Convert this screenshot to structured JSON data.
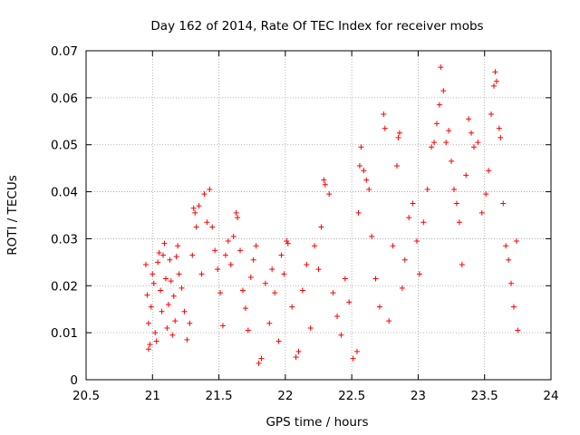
{
  "chart_data": {
    "type": "scatter",
    "title": "Day 162 of 2014, Rate Of TEC Index for receiver mobs",
    "xlabel": "GPS time / hours",
    "ylabel": "ROTI / TECUs",
    "xlim": [
      20.5,
      24
    ],
    "ylim": [
      0,
      0.07
    ],
    "xticks": [
      20.5,
      21,
      21.5,
      22,
      22.5,
      23,
      23.5,
      24
    ],
    "xtick_labels": [
      "20.5",
      "21",
      "21.5",
      "22",
      "22.5",
      "23",
      "23.5",
      "24"
    ],
    "yticks": [
      0,
      0.01,
      0.02,
      0.03,
      0.04,
      0.05,
      0.06,
      0.07
    ],
    "ytick_labels": [
      "0",
      "0.01",
      "0.02",
      "0.03",
      "0.04",
      "0.05",
      "0.06",
      "0.07"
    ],
    "grid": true,
    "marker": "+",
    "color": "#ff0000",
    "series": [
      {
        "name": "ROTI",
        "points": [
          [
            20.95,
            0.0245
          ],
          [
            20.96,
            0.018
          ],
          [
            20.97,
            0.012
          ],
          [
            20.97,
            0.0065
          ],
          [
            20.98,
            0.0075
          ],
          [
            20.99,
            0.0155
          ],
          [
            21.0,
            0.0225
          ],
          [
            21.01,
            0.0205
          ],
          [
            21.02,
            0.01
          ],
          [
            21.03,
            0.0082
          ],
          [
            21.04,
            0.025
          ],
          [
            21.05,
            0.027
          ],
          [
            21.06,
            0.019
          ],
          [
            21.07,
            0.0145
          ],
          [
            21.08,
            0.0265
          ],
          [
            21.09,
            0.029
          ],
          [
            21.1,
            0.0215
          ],
          [
            21.11,
            0.011
          ],
          [
            21.12,
            0.016
          ],
          [
            21.13,
            0.0255
          ],
          [
            21.14,
            0.021
          ],
          [
            21.15,
            0.0095
          ],
          [
            21.16,
            0.0178
          ],
          [
            21.17,
            0.0125
          ],
          [
            21.18,
            0.0262
          ],
          [
            21.19,
            0.0285
          ],
          [
            21.2,
            0.0225
          ],
          [
            21.22,
            0.0195
          ],
          [
            21.24,
            0.0145
          ],
          [
            21.26,
            0.0085
          ],
          [
            21.28,
            0.012
          ],
          [
            21.3,
            0.0265
          ],
          [
            21.31,
            0.0365
          ],
          [
            21.32,
            0.0355
          ],
          [
            21.33,
            0.0325
          ],
          [
            21.35,
            0.037
          ],
          [
            21.37,
            0.0225
          ],
          [
            21.39,
            0.0395
          ],
          [
            21.41,
            0.0335
          ],
          [
            21.43,
            0.0405
          ],
          [
            21.45,
            0.0325
          ],
          [
            21.47,
            0.0275
          ],
          [
            21.49,
            0.0235
          ],
          [
            21.51,
            0.0185
          ],
          [
            21.53,
            0.0115
          ],
          [
            21.55,
            0.0265
          ],
          [
            21.57,
            0.0295
          ],
          [
            21.59,
            0.0245
          ],
          [
            21.61,
            0.0305
          ],
          [
            21.63,
            0.0355
          ],
          [
            21.64,
            0.0345
          ],
          [
            21.66,
            0.0275
          ],
          [
            21.68,
            0.019
          ],
          [
            21.7,
            0.0152
          ],
          [
            21.72,
            0.0105
          ],
          [
            21.74,
            0.0218
          ],
          [
            21.76,
            0.0255
          ],
          [
            21.78,
            0.0285
          ],
          [
            21.8,
            0.0035
          ],
          [
            21.82,
            0.0045
          ],
          [
            21.85,
            0.0205
          ],
          [
            21.88,
            0.012
          ],
          [
            21.9,
            0.0235
          ],
          [
            21.92,
            0.0185
          ],
          [
            21.95,
            0.0082
          ],
          [
            21.97,
            0.0265
          ],
          [
            21.99,
            0.0225
          ],
          [
            22.01,
            0.0295
          ],
          [
            22.02,
            0.029
          ],
          [
            22.05,
            0.0155
          ],
          [
            22.08,
            0.0048
          ],
          [
            22.1,
            0.006
          ],
          [
            22.13,
            0.019
          ],
          [
            22.16,
            0.0245
          ],
          [
            22.19,
            0.011
          ],
          [
            22.22,
            0.0285
          ],
          [
            22.25,
            0.0235
          ],
          [
            22.27,
            0.0325
          ],
          [
            22.29,
            0.0425
          ],
          [
            22.3,
            0.0415
          ],
          [
            22.33,
            0.0395
          ],
          [
            22.36,
            0.0185
          ],
          [
            22.39,
            0.0135
          ],
          [
            22.42,
            0.0095
          ],
          [
            22.45,
            0.0215
          ],
          [
            22.48,
            0.0165
          ],
          [
            22.51,
            0.0045
          ],
          [
            22.54,
            0.006
          ],
          [
            22.55,
            0.0355
          ],
          [
            22.56,
            0.0455
          ],
          [
            22.57,
            0.0495
          ],
          [
            22.59,
            0.0445
          ],
          [
            22.61,
            0.0425
          ],
          [
            22.63,
            0.0405
          ],
          [
            22.65,
            0.0305
          ],
          [
            22.68,
            0.0215
          ],
          [
            22.71,
            0.0155
          ],
          [
            22.74,
            0.0565
          ],
          [
            22.75,
            0.0535
          ],
          [
            22.78,
            0.0125
          ],
          [
            22.81,
            0.0285
          ],
          [
            22.84,
            0.0455
          ],
          [
            22.85,
            0.0515
          ],
          [
            22.86,
            0.0525
          ],
          [
            22.88,
            0.0195
          ],
          [
            22.9,
            0.0255
          ],
          [
            22.93,
            0.0345
          ],
          [
            22.96,
            0.0375
          ],
          [
            22.99,
            0.0295
          ],
          [
            23.01,
            0.0225
          ],
          [
            23.04,
            0.0335
          ],
          [
            23.07,
            0.0405
          ],
          [
            23.1,
            0.0495
          ],
          [
            23.12,
            0.0505
          ],
          [
            23.14,
            0.0545
          ],
          [
            23.16,
            0.0585
          ],
          [
            23.17,
            0.0665
          ],
          [
            23.19,
            0.0615
          ],
          [
            23.21,
            0.0505
          ],
          [
            23.23,
            0.053
          ],
          [
            23.25,
            0.0465
          ],
          [
            23.27,
            0.0405
          ],
          [
            23.29,
            0.0375
          ],
          [
            23.31,
            0.0335
          ],
          [
            23.33,
            0.0245
          ],
          [
            23.36,
            0.0435
          ],
          [
            23.38,
            0.0555
          ],
          [
            23.4,
            0.0525
          ],
          [
            23.42,
            0.0495
          ],
          [
            23.45,
            0.0505
          ],
          [
            23.48,
            0.0355
          ],
          [
            23.51,
            0.0395
          ],
          [
            23.53,
            0.0445
          ],
          [
            23.55,
            0.0565
          ],
          [
            23.57,
            0.0625
          ],
          [
            23.58,
            0.0655
          ],
          [
            23.59,
            0.0635
          ],
          [
            23.61,
            0.0535
          ],
          [
            23.62,
            0.0515
          ],
          [
            23.64,
            0.0375
          ],
          [
            23.66,
            0.0285
          ],
          [
            23.68,
            0.0255
          ],
          [
            23.7,
            0.0205
          ],
          [
            23.72,
            0.0155
          ],
          [
            23.74,
            0.0295
          ],
          [
            23.75,
            0.0105
          ]
        ]
      }
    ]
  }
}
